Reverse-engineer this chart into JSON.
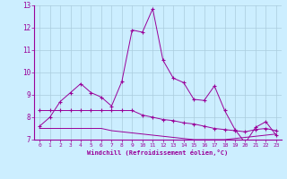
{
  "xlabel": "Windchill (Refroidissement éolien,°C)",
  "bg_color": "#cceeff",
  "line_color": "#990099",
  "grid_color": "#aaccdd",
  "xlim": [
    -0.5,
    23.5
  ],
  "ylim": [
    7,
    13
  ],
  "yticks": [
    7,
    8,
    9,
    10,
    11,
    12,
    13
  ],
  "xticks": [
    0,
    1,
    2,
    3,
    4,
    5,
    6,
    7,
    8,
    9,
    10,
    11,
    12,
    13,
    14,
    15,
    16,
    17,
    18,
    19,
    20,
    21,
    22,
    23
  ],
  "series1_x": [
    0,
    1,
    2,
    3,
    4,
    5,
    6,
    7,
    8,
    9,
    10,
    11,
    12,
    13,
    14,
    15,
    16,
    17,
    18,
    19,
    20,
    21,
    22,
    23
  ],
  "series1_y": [
    7.6,
    8.0,
    8.7,
    9.1,
    9.5,
    9.1,
    8.9,
    8.5,
    9.6,
    11.9,
    11.8,
    12.85,
    10.55,
    9.75,
    9.55,
    8.8,
    8.75,
    9.4,
    8.3,
    7.45,
    6.85,
    7.55,
    7.8,
    7.2
  ],
  "series2_x": [
    0,
    1,
    2,
    3,
    4,
    5,
    6,
    7,
    8,
    9,
    10,
    11,
    12,
    13,
    14,
    15,
    16,
    17,
    18,
    19,
    20,
    21,
    22,
    23
  ],
  "series2_y": [
    8.3,
    8.3,
    8.3,
    8.3,
    8.3,
    8.3,
    8.3,
    8.3,
    8.3,
    8.3,
    8.1,
    8.0,
    7.9,
    7.85,
    7.75,
    7.7,
    7.6,
    7.5,
    7.45,
    7.4,
    7.35,
    7.45,
    7.5,
    7.4
  ],
  "series3_x": [
    0,
    1,
    2,
    3,
    4,
    5,
    6,
    7,
    8,
    9,
    10,
    11,
    12,
    13,
    14,
    15,
    16,
    17,
    18,
    19,
    20,
    21,
    22,
    23
  ],
  "series3_y": [
    7.5,
    7.5,
    7.5,
    7.5,
    7.5,
    7.5,
    7.5,
    7.4,
    7.35,
    7.3,
    7.25,
    7.2,
    7.15,
    7.1,
    7.05,
    7.0,
    7.0,
    7.0,
    7.0,
    7.05,
    7.1,
    7.15,
    7.2,
    7.25
  ]
}
